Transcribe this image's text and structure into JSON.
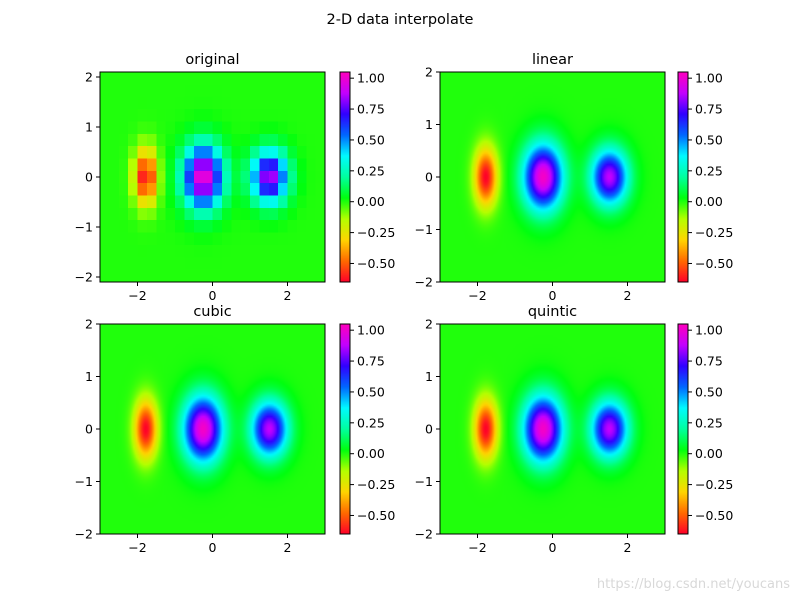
{
  "suptitle": "2-D data interpolate",
  "watermark": "https://blog.csdn.net/youcans",
  "colormap": "gist_rainbow",
  "colormap_stops": [
    "#ff0029",
    "#ff6a00",
    "#ffd500",
    "#b4ff00",
    "#00ff0e",
    "#00ff9f",
    "#00faff",
    "#0067ff",
    "#3000ff",
    "#c400ff",
    "#ff00bd"
  ],
  "chart_data": [
    {
      "type": "heatmap",
      "title": "original",
      "interpolation": "nearest",
      "xlim": [
        -3,
        3
      ],
      "ylim": [
        -2.1,
        2.1
      ],
      "xticks": [
        -2,
        0,
        2
      ],
      "yticks": [
        -2,
        -1,
        0,
        1,
        2
      ],
      "function": "z = (x + y) * exp(-5 * (x^2 + y^2)) on a scaled grid: lobes at x = -1.8 (min about -0.65), x = -0.25 (max about 1.0), x = 1.5 (max about 0.85)",
      "grid_resolution": "coarse (0.25 step)",
      "zlim": [
        -0.65,
        1.05
      ],
      "colorbar_ticks": [
        -0.5,
        -0.25,
        0.0,
        0.25,
        0.5,
        0.75,
        1.0
      ]
    },
    {
      "type": "heatmap",
      "title": "linear",
      "interpolation": "linear",
      "xlim": [
        -3,
        3
      ],
      "ylim": [
        -2,
        2
      ],
      "xticks": [
        -2,
        0,
        2
      ],
      "yticks": [
        -2,
        -1,
        0,
        1,
        2
      ],
      "zlim": [
        -0.65,
        1.05
      ],
      "colorbar_ticks": [
        -0.5,
        -0.25,
        0.0,
        0.25,
        0.5,
        0.75,
        1.0
      ]
    },
    {
      "type": "heatmap",
      "title": "cubic",
      "interpolation": "cubic",
      "xlim": [
        -3,
        3
      ],
      "ylim": [
        -2,
        2
      ],
      "xticks": [
        -2,
        0,
        2
      ],
      "yticks": [
        -2,
        -1,
        0,
        1,
        2
      ],
      "zlim": [
        -0.65,
        1.05
      ],
      "colorbar_ticks": [
        -0.5,
        -0.25,
        0.0,
        0.25,
        0.5,
        0.75,
        1.0
      ]
    },
    {
      "type": "heatmap",
      "title": "quintic",
      "interpolation": "quintic",
      "xlim": [
        -3,
        3
      ],
      "ylim": [
        -2,
        2
      ],
      "xticks": [
        -2,
        0,
        2
      ],
      "yticks": [
        -2,
        -1,
        0,
        1,
        2
      ],
      "zlim": [
        -0.65,
        1.05
      ],
      "colorbar_ticks": [
        -0.5,
        -0.25,
        0.0,
        0.25,
        0.5,
        0.75,
        1.0
      ]
    }
  ],
  "tick_labels": {
    "x": [
      "−2",
      "0",
      "2"
    ],
    "y": [
      "−2",
      "−1",
      "0",
      "1",
      "2"
    ],
    "colorbar": [
      "−0.50",
      "−0.25",
      "0.00",
      "0.25",
      "0.50",
      "0.75",
      "1.00"
    ]
  }
}
